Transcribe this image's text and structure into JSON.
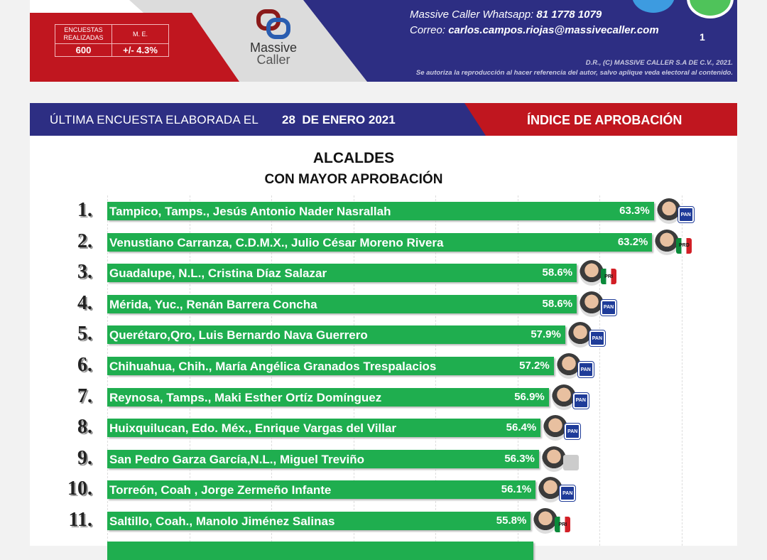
{
  "header": {
    "stats_headers": [
      "ENCUESTAS REALIZADAS",
      "M. E."
    ],
    "stats_values": [
      "600",
      "+/- 4.3%"
    ],
    "logo_line1": "Massive",
    "logo_line2": "Caller",
    "whatsapp_label": "Massive Caller Whatsapp:",
    "whatsapp_number": "81 1778 1079",
    "email_label": "Correo:",
    "email": "carlos.campos.riojas@massivecaller.com",
    "page_number": "1",
    "copyright": "D.R., (C) MASSIVE CALLER S.A DE C.V., 2021.",
    "disclaimer": "Se autoriza la reproducción al hacer referencia del autor, salvo aplique veda electoral al contenido."
  },
  "band": {
    "label": "ÚLTIMA ENCUESTA ELABORADA EL",
    "date": "28  DE ENERO 2021",
    "index": "ÍNDICE DE APROBACIÓN"
  },
  "colors": {
    "bar": "#1fae4f",
    "blue": "#2d2e83",
    "red": "#c0161f"
  },
  "chart_data": {
    "type": "bar",
    "orientation": "horizontal",
    "title": "ALCALDES",
    "subtitle": "CON MAYOR APROBACIÓN",
    "xlim": [
      30,
      65
    ],
    "grid": true,
    "categories": [
      {
        "rank": "1.",
        "label": "Tampico, Tamps., Jesús Antonio Nader Nasrallah",
        "value": 63.3,
        "value_label": "63.3%",
        "party": "PAN"
      },
      {
        "rank": "2.",
        "label": "Venustiano Carranza, C.D.M.X., Julio César Moreno Rivera",
        "value": 63.2,
        "value_label": "63.2%",
        "party": "PRD"
      },
      {
        "rank": "3.",
        "label": "Guadalupe, N.L., Cristina Díaz Salazar",
        "value": 58.6,
        "value_label": "58.6%",
        "party": "PRI"
      },
      {
        "rank": "4.",
        "label": "Mérida, Yuc., Renán Barrera Concha",
        "value": 58.6,
        "value_label": "58.6%",
        "party": "PAN"
      },
      {
        "rank": "5.",
        "label": "Querétaro,Qro, Luis Bernardo Nava Guerrero",
        "value": 57.9,
        "value_label": "57.9%",
        "party": "PAN"
      },
      {
        "rank": "6.",
        "label": "Chihuahua, Chih., María Angélica Granados Trespalacios",
        "value": 57.2,
        "value_label": "57.2%",
        "party": "PAN"
      },
      {
        "rank": "7.",
        "label": "Reynosa, Tamps., Maki Esther Ortíz Domínguez",
        "value": 56.9,
        "value_label": "56.9%",
        "party": "PAN"
      },
      {
        "rank": "8.",
        "label": "Huixquilucan, Edo. Méx., Enrique Vargas del Villar",
        "value": 56.4,
        "value_label": "56.4%",
        "party": "PAN"
      },
      {
        "rank": "9.",
        "label": "San Pedro Garza García,N.L., Miguel Treviño",
        "value": 56.3,
        "value_label": "56.3%",
        "party": "IND"
      },
      {
        "rank": "10.",
        "label": "Torreón, Coah , Jorge Zermeño Infante",
        "value": 56.1,
        "value_label": "56.1%",
        "party": "PAN"
      },
      {
        "rank": "11.",
        "label": "Saltillo, Coah., Manolo Jiménez Salinas",
        "value": 55.8,
        "value_label": "55.8%",
        "party": "PRI"
      }
    ]
  }
}
